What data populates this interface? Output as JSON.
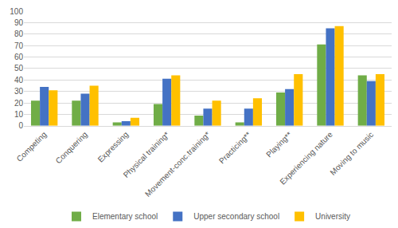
{
  "chart_data": {
    "type": "bar",
    "categories": [
      "Competing",
      "Conquering",
      "Expressing",
      "Physical training*",
      "Movement-conc.training*",
      "Practicing**",
      "Playing**",
      "Experiencing nature",
      "Moving to music"
    ],
    "series": [
      {
        "name": "Elementary school",
        "color": "#70ad47",
        "values": [
          22,
          22,
          3,
          19,
          9,
          3,
          29,
          71,
          44
        ]
      },
      {
        "name": "Upper secondary school",
        "color": "#4472c4",
        "values": [
          34,
          28,
          4,
          41,
          15,
          15,
          32,
          85,
          39
        ]
      },
      {
        "name": "University",
        "color": "#ffc000",
        "values": [
          31,
          35,
          7,
          44,
          22,
          24,
          45,
          87,
          45
        ]
      }
    ],
    "ylim": [
      0,
      100
    ],
    "yticks": [
      0,
      10,
      20,
      30,
      40,
      50,
      60,
      70,
      80,
      90,
      100
    ],
    "grid": true,
    "legend": "bottom"
  }
}
